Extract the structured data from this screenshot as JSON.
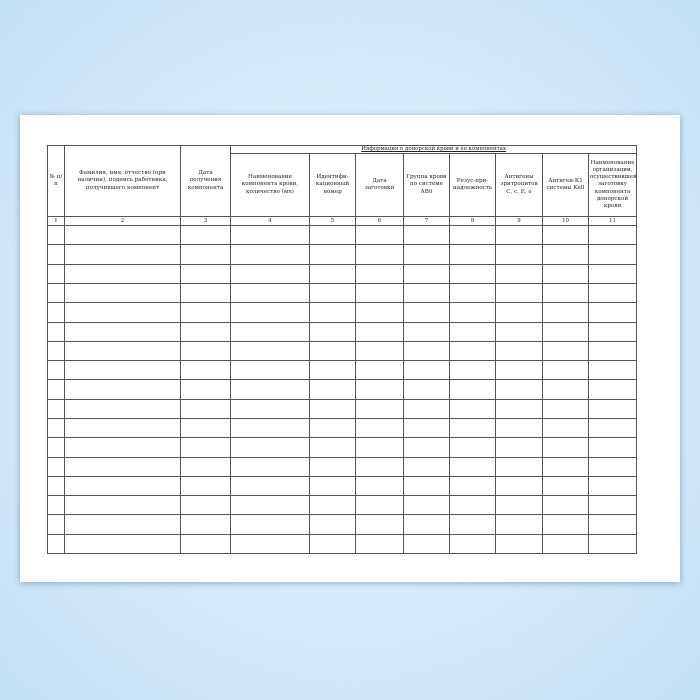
{
  "table": {
    "group_header": "Информация о донорской крови и ее компонентах",
    "columns": [
      "№ п/п",
      "Фамилия, имя, отчество (при наличии), подпись работника, получившего компонент",
      "Дата получения компонента",
      "Наименование компонента крови, количество (мл)",
      "Идентифи-кационный номер",
      "Дата заготовки",
      "Группа крови по системе АВ0",
      "Резус-при-надлежность",
      "Антигены эритроцитов С, с, Е, е",
      "Антиген-К1 системы Kell",
      "Наименование организации, осуществившей заготовку компонента донорской крови"
    ],
    "column_numbers": [
      "1",
      "2",
      "3",
      "4",
      "5",
      "6",
      "7",
      "8",
      "9",
      "10",
      "11"
    ],
    "empty_rows": 17
  }
}
